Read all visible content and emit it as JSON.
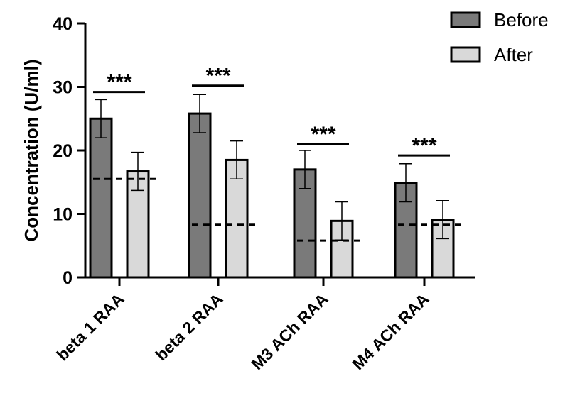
{
  "chart_data": {
    "type": "bar",
    "title": "",
    "xlabel": "",
    "ylabel": "Concentration (U/ml)",
    "ylim": [
      0,
      40
    ],
    "yticks": [
      0,
      10,
      20,
      30,
      40
    ],
    "categories": [
      "beta 1 RAA",
      "beta 2 RAA",
      "M3 ACh RAA",
      "M4 ACh RAA"
    ],
    "series": [
      {
        "name": "Before",
        "color": "#7a7a7a",
        "values": [
          25.0,
          25.8,
          17.0,
          14.9
        ],
        "errors": [
          3.0,
          3.0,
          3.0,
          3.0
        ]
      },
      {
        "name": "After",
        "color": "#d9d9d9",
        "values": [
          16.7,
          18.5,
          8.9,
          9.1
        ],
        "errors": [
          3.0,
          3.0,
          3.0,
          3.0
        ]
      }
    ],
    "reference_lines": [
      15.5,
      8.3,
      5.8,
      8.3
    ],
    "significance": [
      {
        "label": "***",
        "y": 29.2
      },
      {
        "label": "***",
        "y": 30.2
      },
      {
        "label": "***",
        "y": 21.0
      },
      {
        "label": "***",
        "y": 19.2
      }
    ],
    "legend_position": "top-right",
    "grid": false
  }
}
